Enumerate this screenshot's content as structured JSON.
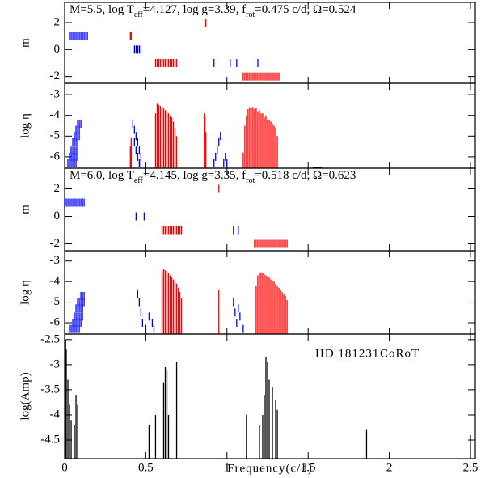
{
  "chart_data": [
    {
      "type": "marks",
      "ylabel": "m",
      "annotation": [
        {
          "text": "M=5.5, log T"
        },
        {
          "sub": "eff"
        },
        {
          "text": "=4.127, log g=3.39, f"
        },
        {
          "sub": "rot"
        },
        {
          "text": "=0.475 c/d, "
        },
        {
          "over": "Ω"
        },
        {
          "text": "=0.524"
        }
      ],
      "xlim": [
        0,
        2.53
      ],
      "xticks": [
        0,
        0.5,
        1,
        1.5,
        2,
        2.5
      ],
      "ylim": [
        -2.5,
        3.5
      ],
      "yticks": [
        -2,
        0,
        2
      ],
      "series": [
        {
          "color": "#0000ff",
          "style": "dash",
          "x": [
            0.03,
            0.04,
            0.05,
            0.06,
            0.07,
            0.08,
            0.09,
            0.1,
            0.11,
            0.12,
            0.13,
            0.14
          ],
          "values": [
            1,
            1,
            1,
            1,
            1,
            1,
            1,
            1,
            1,
            1,
            1,
            1
          ]
        },
        {
          "color": "#ff0000",
          "style": "dash",
          "x": [
            0.405,
            0.41
          ],
          "values": [
            1,
            1
          ]
        },
        {
          "color": "#ff0000",
          "style": "dash",
          "x": [
            0.865,
            0.87
          ],
          "values": [
            2,
            2
          ]
        },
        {
          "color": "#0000ff",
          "style": "dash",
          "x": [
            0.43,
            0.44,
            0.45,
            0.46,
            0.47
          ],
          "values": [
            0,
            0,
            0,
            0,
            0
          ]
        },
        {
          "color": "#ff0000",
          "style": "dash",
          "x": [
            0.56,
            0.57,
            0.58,
            0.59,
            0.6,
            0.61,
            0.62,
            0.63,
            0.64,
            0.65,
            0.66,
            0.67,
            0.68,
            0.69
          ],
          "values": [
            -1,
            -1,
            -1,
            -1,
            -1,
            -1,
            -1,
            -1,
            -1,
            -1,
            -1,
            -1,
            -1,
            -1
          ]
        },
        {
          "color": "#0000ff",
          "style": "dash",
          "x": [
            0.92,
            1.02,
            1.06,
            1.19
          ],
          "values": [
            -1,
            -1,
            -1,
            -1
          ]
        },
        {
          "color": "#ff0000",
          "style": "dash",
          "x": [
            1.1,
            1.11,
            1.12,
            1.13,
            1.14,
            1.15,
            1.16,
            1.17,
            1.18,
            1.19,
            1.2,
            1.21,
            1.22,
            1.23,
            1.24,
            1.25,
            1.26,
            1.27,
            1.28,
            1.29,
            1.3,
            1.31,
            1.32
          ],
          "values": [
            -2,
            -2,
            -2,
            -2,
            -2,
            -2,
            -2,
            -2,
            -2,
            -2,
            -2,
            -2,
            -2,
            -2,
            -2,
            -2,
            -2,
            -2,
            -2,
            -2,
            -2,
            -2,
            -2
          ]
        }
      ]
    },
    {
      "type": "marks",
      "ylabel": "log η",
      "xlim": [
        0,
        2.53
      ],
      "xticks": [
        0,
        0.5,
        1,
        1.5,
        2,
        2.5
      ],
      "ylim": [
        -6.55,
        -2.45
      ],
      "yticks": [
        -6,
        -5,
        -4,
        -3
      ],
      "series": [
        {
          "color": "#0000ff",
          "style": "dash",
          "x": [
            0.02,
            0.03,
            0.04,
            0.05,
            0.06,
            0.07,
            0.03,
            0.04,
            0.05,
            0.06,
            0.07,
            0.08,
            0.04,
            0.05,
            0.06,
            0.07,
            0.08,
            0.05,
            0.06,
            0.07,
            0.08,
            0.06,
            0.07,
            0.08,
            0.09,
            0.07,
            0.08,
            0.09,
            0.08,
            0.09,
            0.1,
            0.42,
            0.43,
            0.44,
            0.43,
            0.45,
            0.44,
            0.46,
            0.45,
            0.47,
            0.46,
            0.47,
            0.92,
            0.93,
            0.94,
            0.95,
            0.96,
            0.98,
            1.0,
            0.99
          ],
          "values": [
            -6.3,
            -6.3,
            -6.3,
            -6.3,
            -6.3,
            -6.3,
            -6.0,
            -6.0,
            -6.0,
            -6.0,
            -6.0,
            -6.0,
            -5.7,
            -5.7,
            -5.7,
            -5.7,
            -5.7,
            -5.3,
            -5.3,
            -5.3,
            -5.3,
            -5.0,
            -5.0,
            -5.0,
            -5.0,
            -4.7,
            -4.7,
            -4.7,
            -4.4,
            -4.4,
            -4.4,
            -4.4,
            -4.7,
            -5.0,
            -5.3,
            -5.3,
            -5.7,
            -5.7,
            -6.0,
            -6.0,
            -6.3,
            -6.3,
            -6.3,
            -6.0,
            -5.7,
            -5.3,
            -5.0,
            -6.3,
            -6.3,
            -6.0
          ]
        },
        {
          "color": "#ff0000",
          "style": "stem",
          "x": [
            0.405,
            0.41,
            0.56,
            0.57,
            0.575,
            0.58,
            0.59,
            0.6,
            0.61,
            0.62,
            0.63,
            0.64,
            0.65,
            0.66,
            0.67,
            0.68,
            0.69,
            0.86,
            0.865,
            0.87,
            1.1,
            1.11,
            1.12,
            1.13,
            1.14,
            1.15,
            1.16,
            1.17,
            1.18,
            1.19,
            1.2,
            1.21,
            1.22,
            1.23,
            1.24,
            1.25,
            1.26,
            1.27,
            1.28,
            1.29,
            1.3,
            1.31
          ],
          "values": [
            -5.5,
            -5.1,
            -3.9,
            -3.4,
            -3.45,
            -3.5,
            -3.55,
            -3.6,
            -3.65,
            -3.75,
            -3.8,
            -3.9,
            -4.0,
            -4.1,
            -4.3,
            -4.6,
            -5.0,
            -3.9,
            -4.0,
            -4.8,
            -5.8,
            -4.5,
            -4.0,
            -3.7,
            -3.6,
            -3.65,
            -3.6,
            -3.7,
            -3.65,
            -3.8,
            -3.75,
            -3.9,
            -3.9,
            -4.1,
            -4.0,
            -4.2,
            -4.2,
            -4.3,
            -4.4,
            -4.5,
            -4.6,
            -5.0
          ]
        }
      ]
    },
    {
      "type": "marks",
      "ylabel": "m",
      "annotation": [
        {
          "text": "M=6.0, log T"
        },
        {
          "sub": "eff"
        },
        {
          "text": "=4.145, log g=3.35, f"
        },
        {
          "sub": "rot"
        },
        {
          "text": "=0.518 c/d, "
        },
        {
          "over": "Ω"
        },
        {
          "text": "=0.623"
        }
      ],
      "xlim": [
        0,
        2.53
      ],
      "xticks": [
        0,
        0.5,
        1,
        1.5,
        2,
        2.5
      ],
      "ylim": [
        -2.5,
        3.5
      ],
      "yticks": [
        -2,
        0,
        2
      ],
      "series": [
        {
          "color": "#0000ff",
          "style": "dash",
          "x": [
            0.0,
            0.01,
            0.02,
            0.03,
            0.04,
            0.05,
            0.06,
            0.07,
            0.08,
            0.09,
            0.1,
            0.11,
            0.12
          ],
          "values": [
            1,
            1,
            1,
            1,
            1,
            1,
            1,
            1,
            1,
            1,
            1,
            1,
            1
          ]
        },
        {
          "color": "#ff0000",
          "style": "dash",
          "x": [
            0.95
          ],
          "values": [
            2
          ]
        },
        {
          "color": "#0000ff",
          "style": "dash",
          "x": [
            0.44,
            0.49
          ],
          "values": [
            0,
            0
          ]
        },
        {
          "color": "#ff0000",
          "style": "dash",
          "x": [
            0.6,
            0.61,
            0.62,
            0.63,
            0.64,
            0.65,
            0.66,
            0.67,
            0.68,
            0.69,
            0.7,
            0.71,
            0.72
          ],
          "values": [
            -1,
            -1,
            -1,
            -1,
            -1,
            -1,
            -1,
            -1,
            -1,
            -1,
            -1,
            -1,
            -1
          ]
        },
        {
          "color": "#0000ff",
          "style": "dash",
          "x": [
            1.04,
            1.07
          ],
          "values": [
            -1,
            -1
          ]
        },
        {
          "color": "#ff0000",
          "style": "dash",
          "x": [
            1.17,
            1.18,
            1.19,
            1.2,
            1.21,
            1.22,
            1.23,
            1.24,
            1.25,
            1.26,
            1.27,
            1.28,
            1.29,
            1.3,
            1.31,
            1.32,
            1.33,
            1.34,
            1.35,
            1.36,
            1.37
          ],
          "values": [
            -2,
            -2,
            -2,
            -2,
            -2,
            -2,
            -2,
            -2,
            -2,
            -2,
            -2,
            -2,
            -2,
            -2,
            -2,
            -2,
            -2,
            -2,
            -2,
            -2,
            -2
          ]
        }
      ]
    },
    {
      "type": "marks",
      "ylabel": "log η",
      "xlim": [
        0,
        2.53
      ],
      "xticks": [
        0,
        0.5,
        1,
        1.5,
        2,
        2.5
      ],
      "ylim": [
        -6.55,
        -2.5
      ],
      "yticks": [
        -6,
        -5,
        -4,
        -3
      ],
      "series": [
        {
          "color": "#0000ff",
          "style": "dash",
          "x": [
            0.03,
            0.04,
            0.05,
            0.06,
            0.07,
            0.08,
            0.09,
            0.05,
            0.06,
            0.07,
            0.08,
            0.09,
            0.1,
            0.06,
            0.07,
            0.08,
            0.09,
            0.1,
            0.11,
            0.07,
            0.08,
            0.09,
            0.1,
            0.11,
            0.08,
            0.09,
            0.1,
            0.11,
            0.12,
            0.1,
            0.11,
            0.12,
            0.45,
            0.46,
            0.47,
            0.48,
            0.5,
            0.52,
            0.54,
            0.55,
            1.04,
            1.05,
            1.06,
            1.07,
            1.08,
            1.1
          ],
          "values": [
            -6.3,
            -6.3,
            -6.3,
            -6.3,
            -6.3,
            -6.3,
            -6.3,
            -6.0,
            -6.0,
            -6.0,
            -6.0,
            -6.0,
            -6.0,
            -5.7,
            -5.7,
            -5.7,
            -5.7,
            -5.7,
            -5.7,
            -5.3,
            -5.3,
            -5.3,
            -5.3,
            -5.3,
            -5.0,
            -5.0,
            -5.0,
            -5.0,
            -5.0,
            -4.7,
            -4.7,
            -4.7,
            -4.6,
            -5.0,
            -5.5,
            -6.0,
            -6.3,
            -5.7,
            -6.0,
            -6.3,
            -5.0,
            -5.5,
            -6.0,
            -5.3,
            -5.7,
            -6.3
          ]
        },
        {
          "color": "#ff0000",
          "style": "stem",
          "x": [
            0.6,
            0.61,
            0.62,
            0.63,
            0.64,
            0.65,
            0.66,
            0.67,
            0.68,
            0.69,
            0.7,
            0.71,
            0.72,
            0.95,
            1.18,
            1.19,
            1.2,
            1.21,
            1.22,
            1.23,
            1.24,
            1.25,
            1.26,
            1.27,
            1.28,
            1.29,
            1.3,
            1.31,
            1.32,
            1.33,
            1.34,
            1.35,
            1.36,
            1.37
          ],
          "values": [
            -3.5,
            -3.4,
            -3.45,
            -3.5,
            -3.6,
            -3.7,
            -3.8,
            -3.9,
            -4.0,
            -4.1,
            -4.3,
            -4.5,
            -4.8,
            -4.4,
            -4.2,
            -3.7,
            -3.6,
            -3.55,
            -3.6,
            -3.65,
            -3.7,
            -3.75,
            -3.8,
            -3.9,
            -3.95,
            -4.0,
            -4.1,
            -4.2,
            -4.3,
            -4.4,
            -4.5,
            -4.6,
            -4.7,
            -4.9
          ]
        }
      ]
    },
    {
      "type": "stem",
      "ylabel": "log(Amp)",
      "xlabel": "Frequency(c/d)",
      "annotations": [
        "HD 181231",
        "CoRoT"
      ],
      "xlim": [
        0,
        2.53
      ],
      "xticks": [
        0,
        0.5,
        1,
        1.5,
        2,
        2.5
      ],
      "ylim": [
        -4.87,
        -2.39
      ],
      "yticks": [
        -4.5,
        -4,
        -3.5,
        -3,
        -2.5
      ],
      "series": [
        {
          "color": "#000000",
          "style": "stem",
          "x": [
            0.002,
            0.006,
            0.01,
            0.02,
            0.03,
            0.04,
            0.06,
            0.07,
            0.08,
            0.52,
            0.56,
            0.61,
            0.62,
            0.63,
            0.64,
            0.69,
            1.12,
            1.2,
            1.22,
            1.23,
            1.24,
            1.25,
            1.26,
            1.28,
            1.3,
            1.31,
            1.86,
            2.5
          ],
          "values": [
            -2.4,
            -2.5,
            -2.7,
            -3.3,
            -3.8,
            -4.1,
            -4.2,
            -3.6,
            -3.8,
            -4.2,
            -4.0,
            -3.35,
            -3.05,
            -3.1,
            -4.0,
            -2.95,
            -4.0,
            -4.2,
            -4.0,
            -3.6,
            -2.85,
            -2.95,
            -3.3,
            -3.45,
            -3.7,
            -3.9,
            -4.3,
            -4.4
          ]
        }
      ]
    }
  ]
}
